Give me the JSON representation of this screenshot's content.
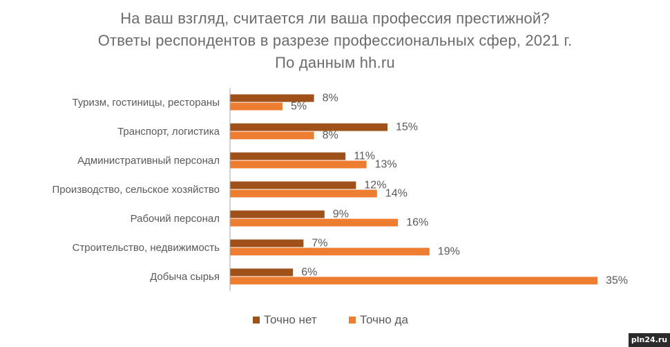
{
  "title": {
    "line1": "На ваш взгляд, считается ли ваша профессия престижной?",
    "line2": "Ответы респондентов в разрезе профессиональных сфер, 2021 г.",
    "line3": "По данным hh.ru"
  },
  "watermark": "pln24.ru",
  "colors": {
    "no": "#a0511a",
    "yes": "#ed7d31",
    "axis": "#a6a6a6"
  },
  "chart_data": {
    "type": "bar",
    "orientation": "horizontal",
    "title": "На ваш взгляд, считается ли ваша профессия престижной? Ответы респондентов в разрезе профессиональных сфер, 2021 г. По данным hh.ru",
    "categories": [
      "Туризм, гостиницы, рестораны",
      "Транспорт, логистика",
      "Административный персонал",
      "Производство, сельское хозяйство",
      "Рабочий персонал",
      "Строительство, недвижимость",
      "Добыча сырья"
    ],
    "series": [
      {
        "name": "Точно нет",
        "color": "#a0511a",
        "values": [
          8,
          15,
          11,
          12,
          9,
          7,
          6
        ],
        "labels": [
          "8%",
          "15%",
          "11%",
          "12%",
          "9%",
          "7%",
          "6%"
        ]
      },
      {
        "name": "Точно да",
        "color": "#ed7d31",
        "values": [
          5,
          8,
          13,
          14,
          16,
          19,
          35
        ],
        "labels": [
          "5%",
          "8%",
          "13%",
          "14%",
          "16%",
          "19%",
          "35%"
        ]
      }
    ],
    "xlim": [
      0,
      35
    ],
    "grid": false,
    "legend": "bottom",
    "xlabel": "",
    "ylabel": ""
  }
}
